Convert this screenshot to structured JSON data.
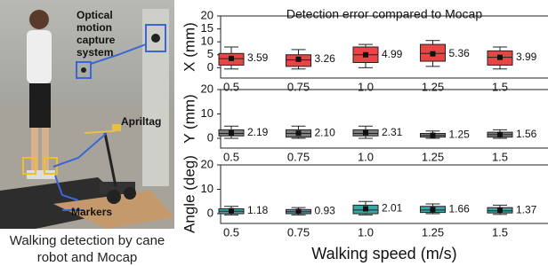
{
  "photo": {
    "labels": [
      "Optical motion capture system",
      "Apriltag",
      "Markers"
    ],
    "caption": "Walking detection by cane robot and Mocap"
  },
  "chart_data": [
    {
      "type": "box",
      "title": "Detection error compared to Mocap",
      "ylabel": "X (mm)",
      "color": "#e84545",
      "categories": [
        "0.5",
        "0.75",
        "1.0",
        "1.25",
        "1.5"
      ],
      "values": [
        3.59,
        3.26,
        4.99,
        5.36,
        3.99
      ],
      "value_labels": [
        "3.59",
        "3.26",
        "4.99",
        "5.36",
        "3.99"
      ],
      "whislo": [
        -0.5,
        -0.5,
        0,
        0.5,
        -0.5
      ],
      "q1": [
        1,
        0.5,
        2,
        2.5,
        1
      ],
      "median": [
        3.5,
        3,
        5,
        5.5,
        4
      ],
      "q3": [
        5.5,
        5,
        8,
        9,
        6.5
      ],
      "whishi": [
        8,
        7,
        9,
        10.5,
        8
      ],
      "ylim": [
        -4,
        20
      ],
      "yticks": [
        0,
        5,
        10,
        15,
        20
      ]
    },
    {
      "type": "box",
      "ylabel": "Y (mm)",
      "color": "#7f7f7f",
      "categories": [
        "0.5",
        "0.75",
        "1.0",
        "1.25",
        "1.5"
      ],
      "values": [
        2.19,
        2.1,
        2.31,
        1.25,
        1.56
      ],
      "value_labels": [
        "2.19",
        "2.10",
        "2.31",
        "1.25",
        "1.56"
      ],
      "whislo": [
        0,
        0,
        0,
        0,
        0
      ],
      "q1": [
        1,
        0.5,
        1,
        0.5,
        0.5
      ],
      "median": [
        2,
        2,
        2,
        1.2,
        1.5
      ],
      "q3": [
        3.5,
        3.5,
        3.5,
        2,
        2.5
      ],
      "whishi": [
        5,
        5,
        5,
        3,
        3.5
      ],
      "ylim": [
        -4,
        20
      ],
      "yticks": [
        0,
        10,
        20
      ]
    },
    {
      "type": "box",
      "ylabel": "Angle (deg)",
      "xlabel": "Walking speed (m/s)",
      "color": "#3aa6a6",
      "categories": [
        "0.5",
        "0.75",
        "1.0",
        "1.25",
        "1.5"
      ],
      "values": [
        1.18,
        0.93,
        2.01,
        1.66,
        1.37
      ],
      "value_labels": [
        "1.18",
        "0.93",
        "2.01",
        "1.66",
        "1.37"
      ],
      "whislo": [
        -0.5,
        -0.5,
        -0.5,
        0,
        -0.3
      ],
      "q1": [
        0,
        0,
        0,
        0.5,
        0.3
      ],
      "median": [
        1,
        0.8,
        1.5,
        1.5,
        1.2
      ],
      "q3": [
        2,
        1.7,
        3.5,
        3,
        2.5
      ],
      "whishi": [
        3,
        2.5,
        5,
        4,
        3.5
      ],
      "ylim": [
        -4,
        20
      ],
      "yticks": [
        0,
        10,
        20
      ]
    }
  ]
}
